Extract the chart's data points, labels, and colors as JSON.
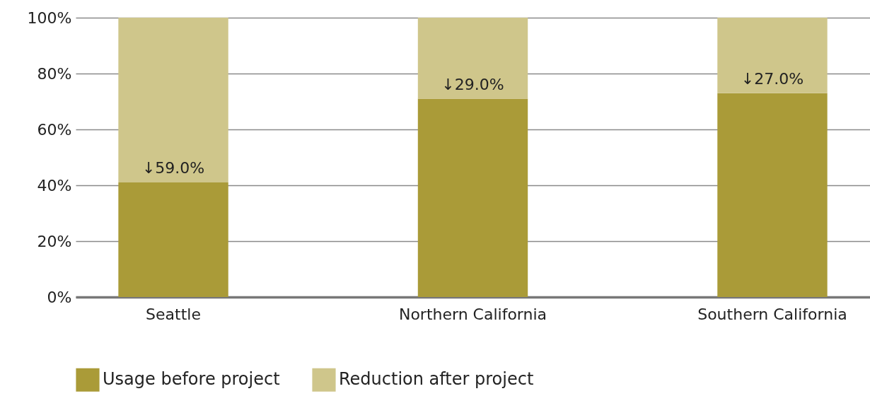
{
  "chart_data": {
    "type": "bar",
    "stacked": true,
    "categories": [
      "Seattle",
      "Northern California",
      "Southern California"
    ],
    "series": [
      {
        "name": "Usage before project",
        "color": "#aa9b38",
        "values": [
          41,
          71,
          73
        ]
      },
      {
        "name": "Reduction after project",
        "color": "#cfc68b",
        "values": [
          59,
          29,
          27
        ],
        "value_labels": [
          "↓59.0%",
          "↓29.0%",
          "↓27.0%"
        ]
      }
    ],
    "ylim": [
      0,
      100
    ],
    "yticks": [
      {
        "value": 0,
        "label": "0%"
      },
      {
        "value": 20,
        "label": "20%"
      },
      {
        "value": 40,
        "label": "40%"
      },
      {
        "value": 60,
        "label": "60%"
      },
      {
        "value": 80,
        "label": "80%"
      },
      {
        "value": 100,
        "label": "100%"
      }
    ],
    "grid": "y",
    "legend": "bottom"
  }
}
